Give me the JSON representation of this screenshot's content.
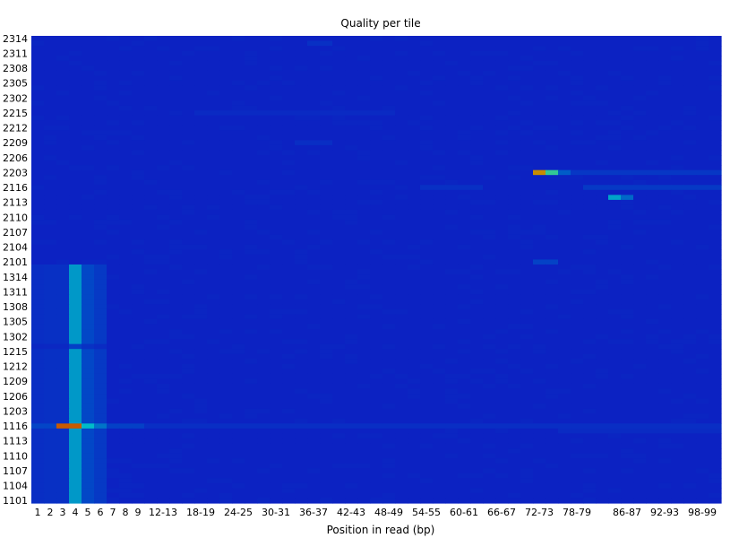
{
  "chart_data": {
    "type": "heatmap",
    "title": "Quality per tile",
    "xlabel": "Position in read (bp)",
    "ylabel": "",
    "x_columns": [
      "1",
      "2",
      "3",
      "4",
      "5",
      "6",
      "7",
      "8",
      "9",
      "10-11",
      "12-13",
      "14-15",
      "16-17",
      "18-19",
      "20-21",
      "22-23",
      "24-25",
      "26-27",
      "28-29",
      "30-31",
      "32-33",
      "34-35",
      "36-37",
      "38-39",
      "40-41",
      "42-43",
      "44-45",
      "46-47",
      "48-49",
      "50-51",
      "52-53",
      "54-55",
      "56-57",
      "58-59",
      "60-61",
      "62-63",
      "64-65",
      "66-67",
      "68-69",
      "70-71",
      "72-73",
      "74-75",
      "76-77",
      "78-79",
      "80-81",
      "82-83",
      "84-85",
      "86-87",
      "88-89",
      "90-91",
      "92-93",
      "94-95",
      "96-97",
      "98-99",
      "100-101"
    ],
    "x_tick_labels": [
      "1",
      "2",
      "3",
      "4",
      "5",
      "6",
      "7",
      "8",
      "9",
      "12-13",
      "18-19",
      "24-25",
      "30-31",
      "36-37",
      "42-43",
      "48-49",
      "54-55",
      "60-61",
      "66-67",
      "72-73",
      "78-79",
      "86-87",
      "92-93",
      "98-99"
    ],
    "y_tiles": [
      "2314",
      "2313",
      "2312",
      "2311",
      "2310",
      "2309",
      "2308",
      "2307",
      "2306",
      "2305",
      "2304",
      "2303",
      "2302",
      "2301",
      "2216",
      "2215",
      "2214",
      "2213",
      "2212",
      "2211",
      "2210",
      "2209",
      "2208",
      "2207",
      "2206",
      "2205",
      "2204",
      "2203",
      "2202",
      "2201",
      "2116",
      "2115",
      "2114",
      "2113",
      "2112",
      "2111",
      "2110",
      "2109",
      "2108",
      "2107",
      "2106",
      "2105",
      "2104",
      "2103",
      "2102",
      "2101",
      "1316",
      "1315",
      "1314",
      "1313",
      "1312",
      "1311",
      "1310",
      "1309",
      "1308",
      "1307",
      "1306",
      "1305",
      "1304",
      "1303",
      "1302",
      "1301",
      "1216",
      "1215",
      "1214",
      "1213",
      "1212",
      "1211",
      "1210",
      "1209",
      "1208",
      "1207",
      "1206",
      "1205",
      "1204",
      "1203",
      "1202",
      "1201",
      "1116",
      "1115",
      "1114",
      "1113",
      "1112",
      "1111",
      "1110",
      "1109",
      "1108",
      "1107",
      "1106",
      "1105",
      "1104",
      "1103",
      "1102",
      "1101"
    ],
    "y_tick_labels": [
      "2314",
      "2311",
      "2308",
      "2305",
      "2302",
      "2215",
      "2212",
      "2209",
      "2206",
      "2203",
      "2116",
      "2113",
      "2110",
      "2107",
      "2104",
      "2101",
      "1314",
      "1311",
      "1308",
      "1305",
      "1302",
      "1215",
      "1212",
      "1209",
      "1206",
      "1203",
      "1116",
      "1113",
      "1110",
      "1107",
      "1104",
      "1101"
    ],
    "value_scale": [
      0,
      10
    ],
    "colormap": [
      "#0000a0",
      "#0050c8",
      "#00c8c8",
      "#c8c800",
      "#c86400",
      "#c80000"
    ],
    "base_color": "#0c22c2",
    "hotspots": [
      {
        "tile": "1116",
        "columns": [
          "3",
          "4"
        ],
        "value": 8.2
      },
      {
        "tile": "1116",
        "columns": [
          "5"
        ],
        "value": 3.8
      },
      {
        "tile": "1116",
        "columns": [
          "6"
        ],
        "value": 2.6
      },
      {
        "tile": "1116",
        "columns": [
          "7",
          "8",
          "9"
        ],
        "value": 1.3
      },
      {
        "tile": "1116",
        "columns": [
          "1",
          "2"
        ],
        "value": 1.5
      },
      {
        "tile": "2203",
        "columns": [
          "72-73"
        ],
        "value": 7.2
      },
      {
        "tile": "2203",
        "columns": [
          "74-75"
        ],
        "value": 4.5
      },
      {
        "tile": "2203",
        "columns": [
          "76-77"
        ],
        "value": 2.2
      },
      {
        "tile": "2114",
        "columns": [
          "84-85"
        ],
        "value": 3.4
      },
      {
        "tile": "2114",
        "columns": [
          "86-87"
        ],
        "value": 2.4
      },
      {
        "tile": "2101",
        "columns": [
          "72-73",
          "74-75"
        ],
        "value": 1.4
      }
    ],
    "bands": [
      {
        "tiles_from": "1316",
        "tiles_to": "1101",
        "column": "4",
        "value": 3.2
      },
      {
        "tiles_from": "1316",
        "tiles_to": "1101",
        "column": "5",
        "value": 1.6
      },
      {
        "tiles_from": "1316",
        "tiles_to": "1101",
        "column": "6",
        "value": 1.0
      },
      {
        "tiles_from": "1316",
        "tiles_to": "1101",
        "column": "3",
        "value": 0.6
      },
      {
        "tiles_from": "1316",
        "tiles_to": "1101",
        "column": "1",
        "value": 0.5
      },
      {
        "tiles_from": "1316",
        "tiles_to": "1101",
        "column": "2",
        "value": 0.6
      }
    ],
    "streaks": [
      {
        "tile": "2203",
        "columns_from": "78-79",
        "columns_to": "100-101",
        "value": 0.9
      },
      {
        "tile": "2116",
        "columns_from": "80-81",
        "columns_to": "100-101",
        "value": 1.0
      },
      {
        "tile": "2116",
        "columns_from": "54-55",
        "columns_to": "62-63",
        "value": 0.6
      },
      {
        "tile": "1116",
        "columns_from": "10-11",
        "columns_to": "100-101",
        "value": 0.5
      },
      {
        "tile": "1115",
        "columns_from": "76-77",
        "columns_to": "100-101",
        "value": 0.4
      },
      {
        "tile": "2313",
        "columns_from": "36-37",
        "columns_to": "38-39",
        "value": 0.6
      },
      {
        "tile": "2209",
        "columns_from": "34-35",
        "columns_to": "38-39",
        "value": 0.5
      },
      {
        "tile": "2215",
        "columns_from": "18-19",
        "columns_to": "48-49",
        "value": 0.35
      }
    ]
  }
}
